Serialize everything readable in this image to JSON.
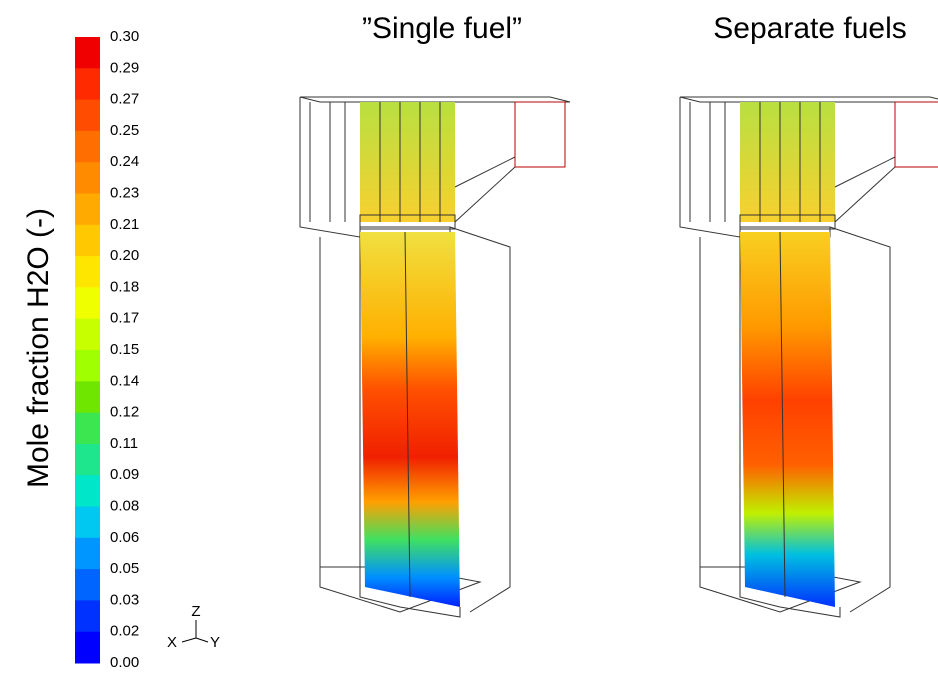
{
  "colorbar": {
    "title": "Mole fraction H2O (-)",
    "labels": [
      "0.30",
      "0.29",
      "0.27",
      "0.25",
      "0.24",
      "0.23",
      "0.21",
      "0.20",
      "0.18",
      "0.17",
      "0.15",
      "0.14",
      "0.12",
      "0.11",
      "0.09",
      "0.08",
      "0.06",
      "0.05",
      "0.03",
      "0.02",
      "0.00"
    ],
    "colors": [
      "#f00000",
      "#ff2a00",
      "#ff4c00",
      "#ff6e00",
      "#ff8c00",
      "#ffaa00",
      "#ffc800",
      "#ffe600",
      "#f0ff00",
      "#c8ff00",
      "#a0ff00",
      "#6ee600",
      "#3ce650",
      "#1ee68c",
      "#00e6c8",
      "#00c8f0",
      "#0096ff",
      "#0064ff",
      "#0032ff",
      "#0000ff"
    ]
  },
  "axes_triad": {
    "z": "Z",
    "x": "X",
    "y": "Y"
  },
  "panels": [
    {
      "title": "”Single fuel”"
    },
    {
      "title": "Separate fuels"
    }
  ]
}
